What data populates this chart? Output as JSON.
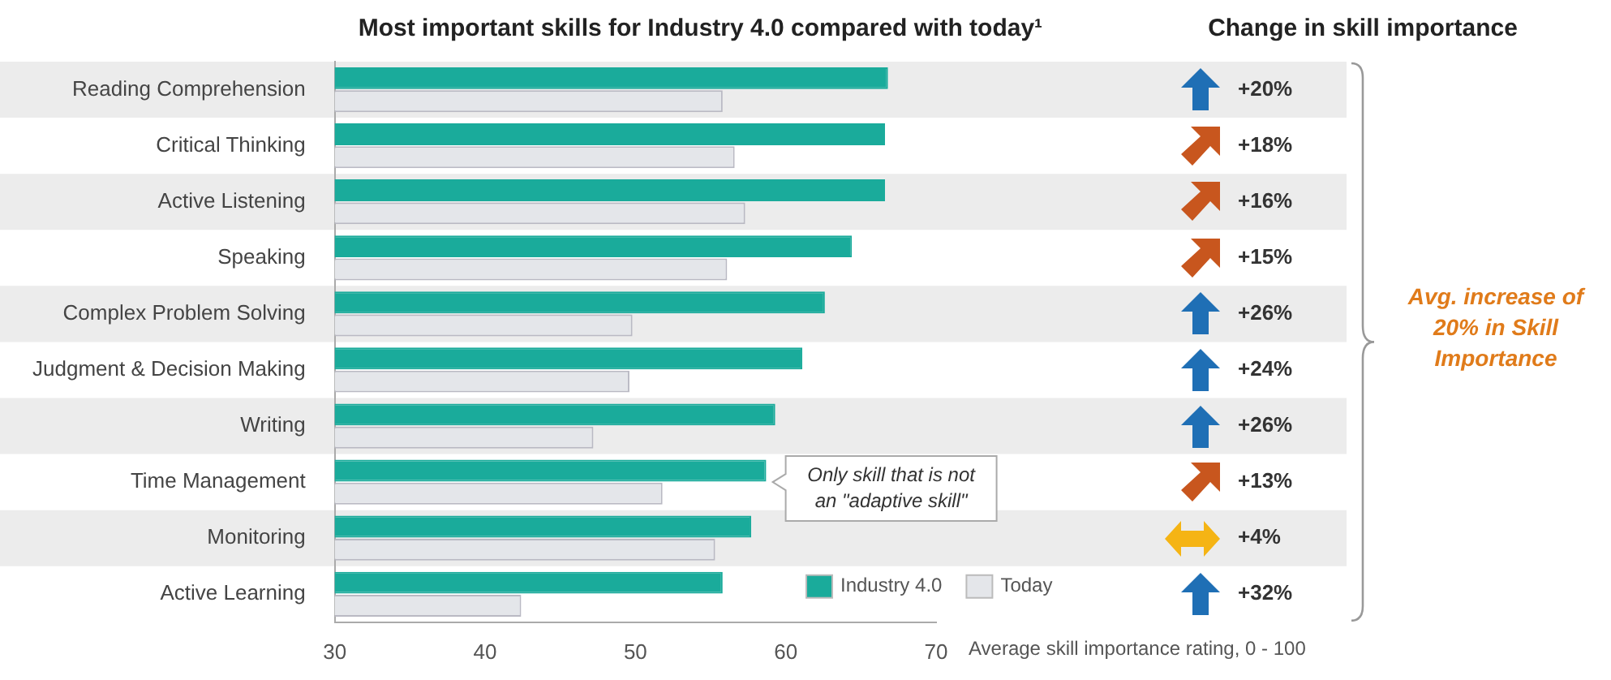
{
  "chart_data": {
    "type": "bar",
    "orientation": "horizontal",
    "title": "Most important skills for Industry 4.0 compared with today¹",
    "xlabel": "Average skill importance rating, 0 - 100",
    "categories": [
      "Reading Comprehension",
      "Critical Thinking",
      "Active Listening",
      "Speaking",
      "Complex Problem Solving",
      "Judgment & Decision Making",
      "Writing",
      "Time Management",
      "Monitoring",
      "Active Learning"
    ],
    "series": [
      {
        "name": "Industry 4.0",
        "color": "#1aab9b",
        "values": [
          66.8,
          66.6,
          66.6,
          64.4,
          62.6,
          61.1,
          59.3,
          58.7,
          57.7,
          55.8
        ]
      },
      {
        "name": "Today",
        "color": "#e4e6ea",
        "values": [
          55.8,
          56.6,
          57.3,
          56.1,
          49.8,
          49.6,
          47.2,
          51.8,
          55.3,
          42.4
        ]
      }
    ],
    "xlim": [
      30,
      70
    ],
    "xticks": [
      30,
      40,
      50,
      60,
      70
    ],
    "grid": false,
    "legend": "bottom right",
    "annotations": [
      "Change in skill importance",
      "+20%",
      "+18%",
      "+16%",
      "+15%",
      "+26%",
      "+24%",
      "+26%",
      "+13%",
      "+4%",
      "+32%",
      "Avg. increase of 20% in Skill Importance",
      {
        "text": "Only skill that is not an \"adaptive skill\"",
        "x": 58.7,
        "y": "Time Management"
      }
    ]
  }
}
